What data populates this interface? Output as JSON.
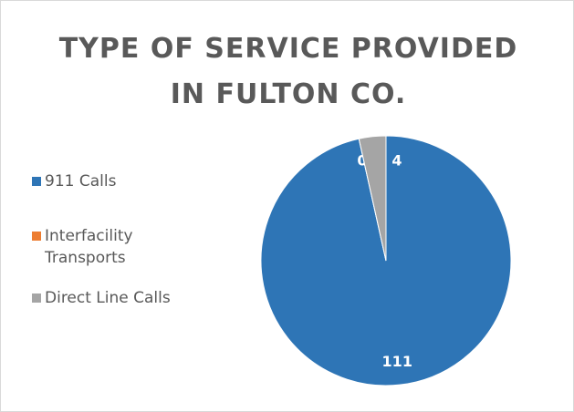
{
  "chart_data": {
    "type": "pie",
    "title": "TYPE OF SERVICE PROVIDED IN FULTON CO.",
    "categories": [
      "911 Calls",
      "Interfacility Transports",
      "Direct Line Calls"
    ],
    "values": [
      111,
      0,
      4
    ],
    "colors": [
      "#2e75b6",
      "#ed7d31",
      "#a5a5a5"
    ],
    "legend": "left"
  }
}
